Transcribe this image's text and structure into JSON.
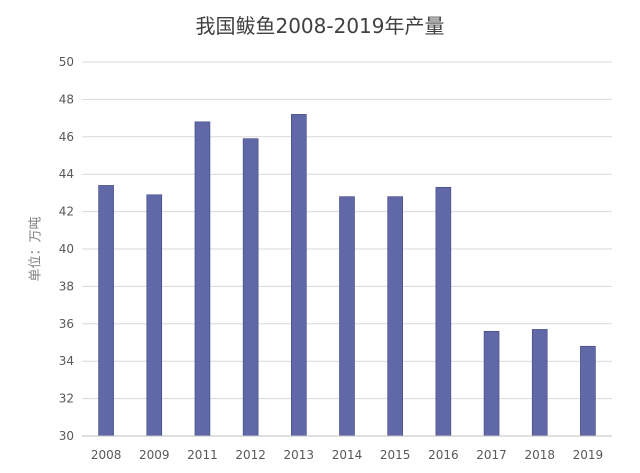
{
  "chart_data": {
    "type": "bar",
    "title": "我国鲅鱼2008-2019年产量",
    "ylabel": "单位：万吨",
    "xlabel": "",
    "categories": [
      "2008",
      "2009",
      "2011",
      "2012",
      "2013",
      "2014",
      "2015",
      "2016",
      "2017",
      "2018",
      "2019"
    ],
    "values": [
      43.4,
      42.9,
      46.8,
      45.9,
      47.2,
      42.8,
      42.8,
      43.3,
      35.6,
      35.7,
      34.8
    ],
    "ylim": [
      30,
      50
    ],
    "yticks": [
      "30",
      "32",
      "34",
      "36",
      "38",
      "40",
      "42",
      "44",
      "46",
      "48",
      "50"
    ],
    "grid": true,
    "legend": "none",
    "bar_color": "#6068a8",
    "bar_edge_color": "#3f4681",
    "grid_color": "#d9d9d9"
  }
}
